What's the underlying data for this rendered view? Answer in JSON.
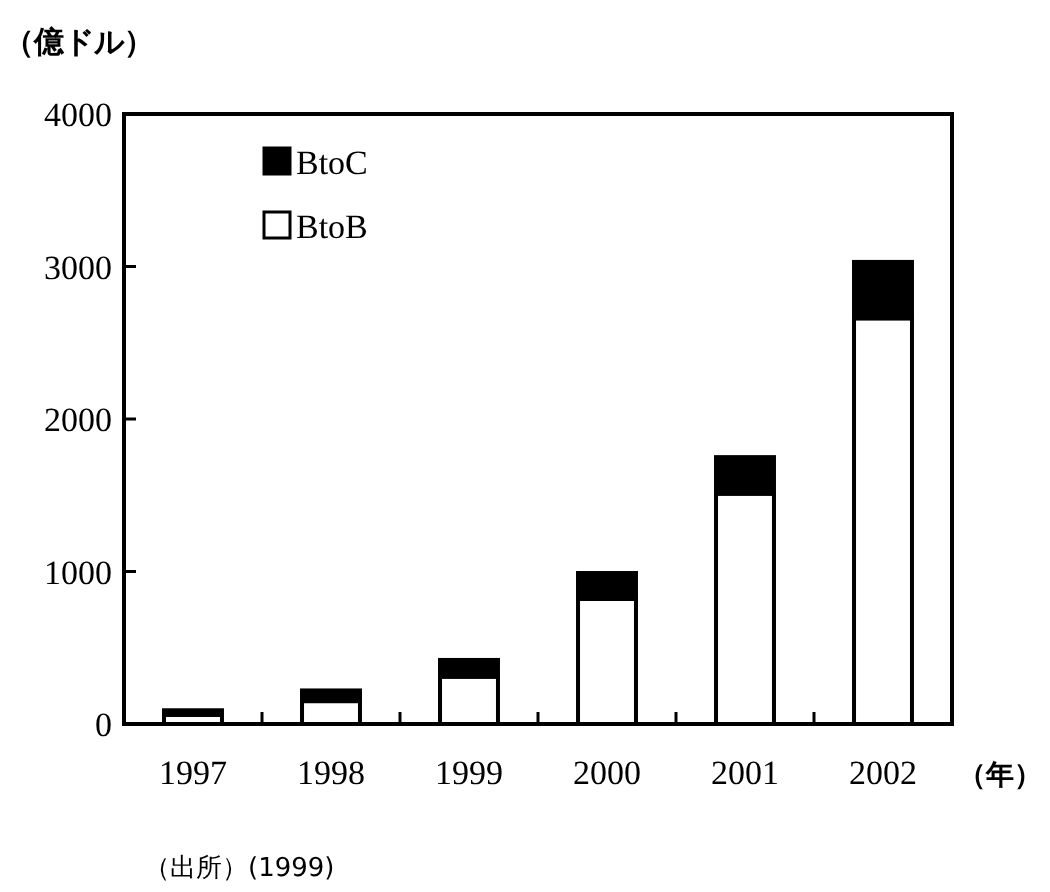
{
  "chart_data": {
    "type": "bar",
    "stacked": true,
    "ylabel": "（億ドル）",
    "xlabel": "（年）",
    "categories": [
      "1997",
      "1998",
      "1999",
      "2000",
      "2001",
      "2002"
    ],
    "series": [
      {
        "name": "BtoB",
        "color": "#ffffff",
        "values": [
          60,
          150,
          310,
          820,
          1510,
          2660
        ]
      },
      {
        "name": "BtoC",
        "color": "#000000",
        "values": [
          30,
          70,
          110,
          170,
          240,
          370
        ]
      }
    ],
    "ylim": [
      0,
      4000
    ],
    "yticks": [
      0,
      1000,
      2000,
      3000,
      4000
    ],
    "legend": "top left",
    "annotations": [
      "（出所）(1999)"
    ]
  }
}
